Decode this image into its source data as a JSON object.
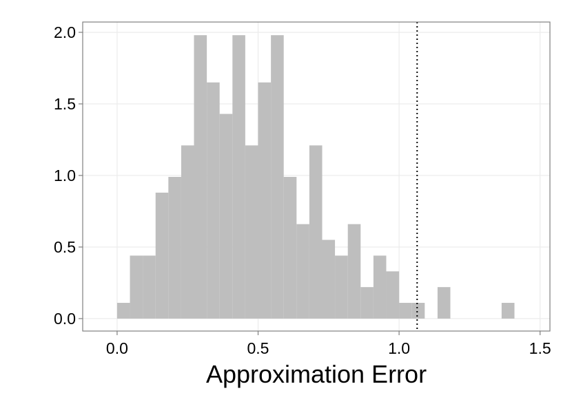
{
  "chart_data": {
    "type": "histogram",
    "x_label": "Approximation Error",
    "bins": [
      0,
      0.0455,
      0.0909,
      0.1364,
      0.1818,
      0.2273,
      0.2727,
      0.3182,
      0.3636,
      0.4091,
      0.4545,
      0.5,
      0.5455,
      0.5909,
      0.6364,
      0.6818,
      0.7273,
      0.7727,
      0.8182,
      0.8636,
      0.9091,
      0.9545,
      1.0,
      1.0455,
      1.0909,
      1.1364,
      1.1818,
      1.2273,
      1.2727,
      1.3182,
      1.3636,
      1.4091
    ],
    "values": [
      0.11,
      0.44,
      0.44,
      0.88,
      0.99,
      1.21,
      1.98,
      1.65,
      1.43,
      1.98,
      1.21,
      1.65,
      1.98,
      0.99,
      0.66,
      1.21,
      0.55,
      0.44,
      0.66,
      0.22,
      0.44,
      0.33,
      0.11,
      0.11,
      0,
      0.22,
      0,
      0,
      0,
      0,
      0.11
    ],
    "color": "#bebebe",
    "vline": 1.064,
    "xlim": [
      -0.122,
      1.535
    ],
    "ylim": [
      -0.087,
      2.072
    ],
    "xticks": [
      {
        "value": 0,
        "label": "0.0"
      },
      0.5,
      {
        "value": 1,
        "label": "1.0"
      },
      1.5
    ],
    "yticks": [
      {
        "value": 0,
        "label": "0.0"
      },
      0.5,
      {
        "value": 1,
        "label": "1.0"
      },
      1.5,
      {
        "value": 2,
        "label": "2.0"
      }
    ],
    "grid": true
  }
}
